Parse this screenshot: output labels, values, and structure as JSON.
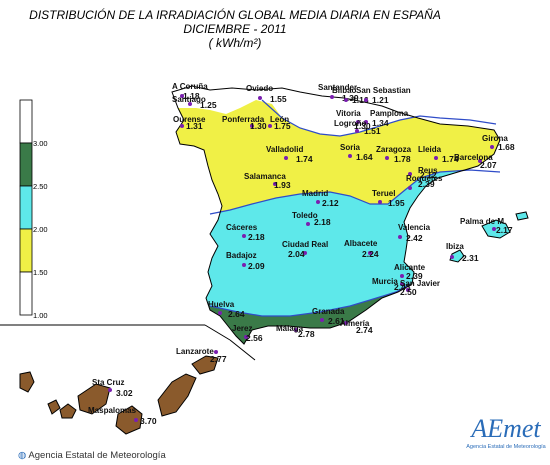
{
  "title": {
    "line1": "DISTRIBUCIÓN DE LA IRRADIACIÓN GLOBAL MEDIA DIARIA EN  ESPAÑA",
    "line2": "DICIEMBRE - 2011",
    "line3": "( kWh/m²)"
  },
  "legend": {
    "ticks": [
      "3.00",
      "2.50",
      "2.00",
      "1.50",
      "1.00"
    ],
    "classes": [
      {
        "range": "2.50-3.00",
        "color": "#3a7a48"
      },
      {
        "range": "2.00-2.50",
        "color": "#5ee8ea"
      },
      {
        "range": "1.50-2.00",
        "color": "#f0f046"
      },
      {
        "range": "1.00-1.50",
        "color": "#ffffff"
      }
    ]
  },
  "colors": {
    "outline": "#000000",
    "contour": "#2f4cc8",
    "station": "#7a1fb0",
    "canary_land": "#8a5a2c"
  },
  "stations": [
    {
      "name": "A Coruña",
      "value": "1.18"
    },
    {
      "name": "Santiago",
      "value": "1.25"
    },
    {
      "name": "Oviedo",
      "value": "1.55"
    },
    {
      "name": "Santander",
      "value": "1.39"
    },
    {
      "name": "Bilbao",
      "value": "1.16"
    },
    {
      "name": "San Sebastian",
      "value": "1.21"
    },
    {
      "name": "Ourense",
      "value": "1.31"
    },
    {
      "name": "Ponferrada",
      "value": "1.30"
    },
    {
      "name": "León",
      "value": "1.75"
    },
    {
      "name": "Vitoria",
      "value": "1.30"
    },
    {
      "name": "Pamplona",
      "value": "1.34"
    },
    {
      "name": "Logroño",
      "value": "1.51"
    },
    {
      "name": "Girona",
      "value": "1.68"
    },
    {
      "name": "Valladolid",
      "value": "1.74"
    },
    {
      "name": "Soria",
      "value": "1.64"
    },
    {
      "name": "Zaragoza",
      "value": "1.78"
    },
    {
      "name": "Lleida",
      "value": "1.74"
    },
    {
      "name": "Barcelona",
      "value": "2.07"
    },
    {
      "name": "Salamanca",
      "value": "1.93"
    },
    {
      "name": "Reus",
      "value": "2.12"
    },
    {
      "name": "Roquetes",
      "value": "2.39"
    },
    {
      "name": "Madrid",
      "value": "2.12"
    },
    {
      "name": "Teruel",
      "value": "1.95"
    },
    {
      "name": "Toledo",
      "value": "2.18"
    },
    {
      "name": "Cáceres",
      "value": "2.18"
    },
    {
      "name": "Valencia",
      "value": "2.42"
    },
    {
      "name": "Palma de M.",
      "value": "2.17"
    },
    {
      "name": "Ciudad Real",
      "value": "2.04"
    },
    {
      "name": "Albacete",
      "value": "2.24"
    },
    {
      "name": "Badajoz",
      "value": "2.09"
    },
    {
      "name": "Ibiza",
      "value": "2.31"
    },
    {
      "name": "Alicante",
      "value": "2.39"
    },
    {
      "name": "Murcia",
      "value": "2.43"
    },
    {
      "name": "San Javier",
      "value": "2.50"
    },
    {
      "name": "Huelva",
      "value": "2.64"
    },
    {
      "name": "Granada",
      "value": "2.61"
    },
    {
      "name": "Jerez",
      "value": "2.56"
    },
    {
      "name": "Málaga",
      "value": "2.78"
    },
    {
      "name": "Almería",
      "value": "2.74"
    },
    {
      "name": "Lanzarote",
      "value": "2.77"
    },
    {
      "name": "Sta Cruz",
      "value": "3.02"
    },
    {
      "name": "Maspalomas",
      "value": "3.70"
    }
  ],
  "footer": "Agencia Estatal de Meteorología",
  "logo": {
    "text": "AEmet",
    "subtitle": "Agencia Estatal de Meteorología"
  }
}
